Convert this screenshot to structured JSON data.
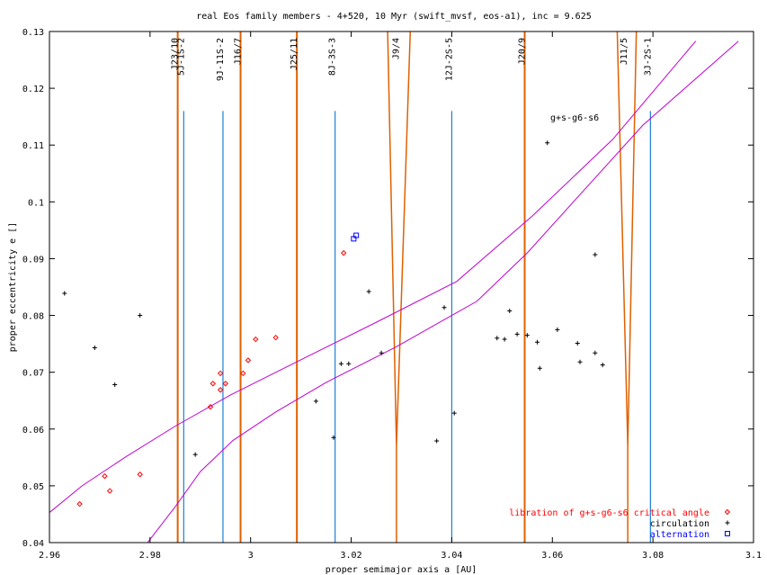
{
  "chart_data": {
    "type": "scatter",
    "title": "real Eos family members - 4+520, 10 Myr (swift_mvsf, eos-a1), inc = 9.625",
    "xlabel": "proper semimajor axis a [AU]",
    "ylabel": "proper eccentricity e []",
    "xlim": [
      2.96,
      3.1
    ],
    "ylim": [
      0.04,
      0.13
    ],
    "xticks": [
      2.96,
      2.98,
      3.0,
      3.02,
      3.04,
      3.06,
      3.08,
      3.1
    ],
    "xtick_labels": [
      "2.96",
      "2.98",
      "3",
      "3.02",
      "3.04",
      "3.06",
      "3.08",
      "3.1"
    ],
    "yticks": [
      0.04,
      0.05,
      0.06,
      0.07,
      0.08,
      0.09,
      0.1,
      0.11,
      0.12,
      0.13
    ],
    "ytick_labels": [
      "0.04",
      "0.05",
      "0.06",
      "0.07",
      "0.08",
      "0.09",
      "0.1",
      "0.11",
      "0.12",
      "0.13"
    ],
    "grid": false,
    "legend_position": "bottom-right",
    "colors": {
      "libration": "#ff0000",
      "circulation": "#000000",
      "alternation": "#0000ff",
      "mmr_jupiter": "#e06000",
      "mmr_three_body": "#1a7fd6",
      "secular": "#c000d0"
    },
    "series": [
      {
        "name": "libration of g+s-g6-s6 critical angle",
        "marker": "diamond",
        "points": [
          [
            2.966,
            0.0468
          ],
          [
            2.971,
            0.0517
          ],
          [
            2.972,
            0.0491
          ],
          [
            2.978,
            0.052
          ],
          [
            2.992,
            0.0639
          ],
          [
            2.9925,
            0.068
          ],
          [
            2.994,
            0.0698
          ],
          [
            2.994,
            0.0669
          ],
          [
            2.995,
            0.068
          ],
          [
            2.9985,
            0.0698
          ],
          [
            2.9995,
            0.0721
          ],
          [
            3.001,
            0.0758
          ],
          [
            3.005,
            0.0761
          ],
          [
            3.0185,
            0.091
          ]
        ]
      },
      {
        "name": "circulation",
        "marker": "plus",
        "points": [
          [
            2.963,
            0.0839
          ],
          [
            2.969,
            0.0743
          ],
          [
            2.973,
            0.0678
          ],
          [
            2.978,
            0.08
          ],
          [
            2.989,
            0.0555
          ],
          [
            3.013,
            0.0649
          ],
          [
            3.0165,
            0.0585
          ],
          [
            3.018,
            0.0715
          ],
          [
            3.0195,
            0.0715
          ],
          [
            3.0235,
            0.0842
          ],
          [
            3.026,
            0.0734
          ],
          [
            3.037,
            0.0579
          ],
          [
            3.0385,
            0.0814
          ],
          [
            3.0405,
            0.0628
          ],
          [
            3.049,
            0.076
          ],
          [
            3.0505,
            0.0758
          ],
          [
            3.0515,
            0.0808
          ],
          [
            3.053,
            0.0767
          ],
          [
            3.055,
            0.0765
          ],
          [
            3.057,
            0.0753
          ],
          [
            3.0575,
            0.0707
          ],
          [
            3.059,
            0.1104
          ],
          [
            3.061,
            0.0775
          ],
          [
            3.065,
            0.0751
          ],
          [
            3.0655,
            0.0718
          ],
          [
            3.0685,
            0.0734
          ],
          [
            3.0685,
            0.0907
          ],
          [
            3.07,
            0.0713
          ]
        ]
      },
      {
        "name": "alternation",
        "marker": "square",
        "points": [
          [
            3.0205,
            0.0935
          ],
          [
            3.021,
            0.0941
          ]
        ]
      }
    ],
    "resonances": [
      {
        "label": "J23/10",
        "a": 2.9855,
        "family": "jupiter",
        "width": 0.0003,
        "taper": false
      },
      {
        "label": "5J-1S-2",
        "a": 2.9867,
        "family": "three_body"
      },
      {
        "label": "9J-11S-2",
        "a": 2.9945,
        "family": "three_body"
      },
      {
        "label": "J16/7",
        "a": 2.998,
        "family": "jupiter",
        "width": 0.0004,
        "taper": false
      },
      {
        "label": "J25/11",
        "a": 3.0092,
        "family": "jupiter",
        "width": 0.0004,
        "taper": false
      },
      {
        "label": "8J-3S-3",
        "a": 3.0168,
        "family": "three_body"
      },
      {
        "label": "J9/4",
        "a": 3.0295,
        "family": "jupiter",
        "width": 0.0045,
        "taper": true,
        "shift": -0.0005
      },
      {
        "label": "12J-2S-5",
        "a": 3.04,
        "family": "three_body"
      },
      {
        "label": "J20/9",
        "a": 3.0545,
        "family": "jupiter",
        "width": 0.0003,
        "taper": false
      },
      {
        "label": "J11/5",
        "a": 3.0748,
        "family": "jupiter",
        "width": 0.0038,
        "taper": true,
        "shift": 0.0002
      },
      {
        "label": "3J-2S-1",
        "a": 3.0795,
        "family": "three_body"
      }
    ],
    "secular_resonance": {
      "label": "g+s-g6-s6",
      "upper": [
        [
          2.96,
          0.0453
        ],
        [
          2.9665,
          0.05
        ],
        [
          2.975,
          0.055
        ],
        [
          2.985,
          0.0605
        ],
        [
          2.996,
          0.066
        ],
        [
          3.01,
          0.0722
        ],
        [
          3.025,
          0.0788
        ],
        [
          3.041,
          0.086
        ],
        [
          3.056,
          0.0975
        ],
        [
          3.072,
          0.111
        ],
        [
          3.0885,
          0.1283
        ]
      ],
      "lower": [
        [
          2.9795,
          0.04
        ],
        [
          2.985,
          0.0463
        ],
        [
          2.99,
          0.0525
        ],
        [
          2.9965,
          0.058
        ],
        [
          3.005,
          0.063
        ],
        [
          3.015,
          0.0682
        ],
        [
          3.029,
          0.0745
        ],
        [
          3.045,
          0.0825
        ],
        [
          3.055,
          0.091
        ],
        [
          3.065,
          0.1008
        ],
        [
          3.078,
          0.1135
        ],
        [
          3.097,
          0.1283
        ]
      ]
    }
  }
}
